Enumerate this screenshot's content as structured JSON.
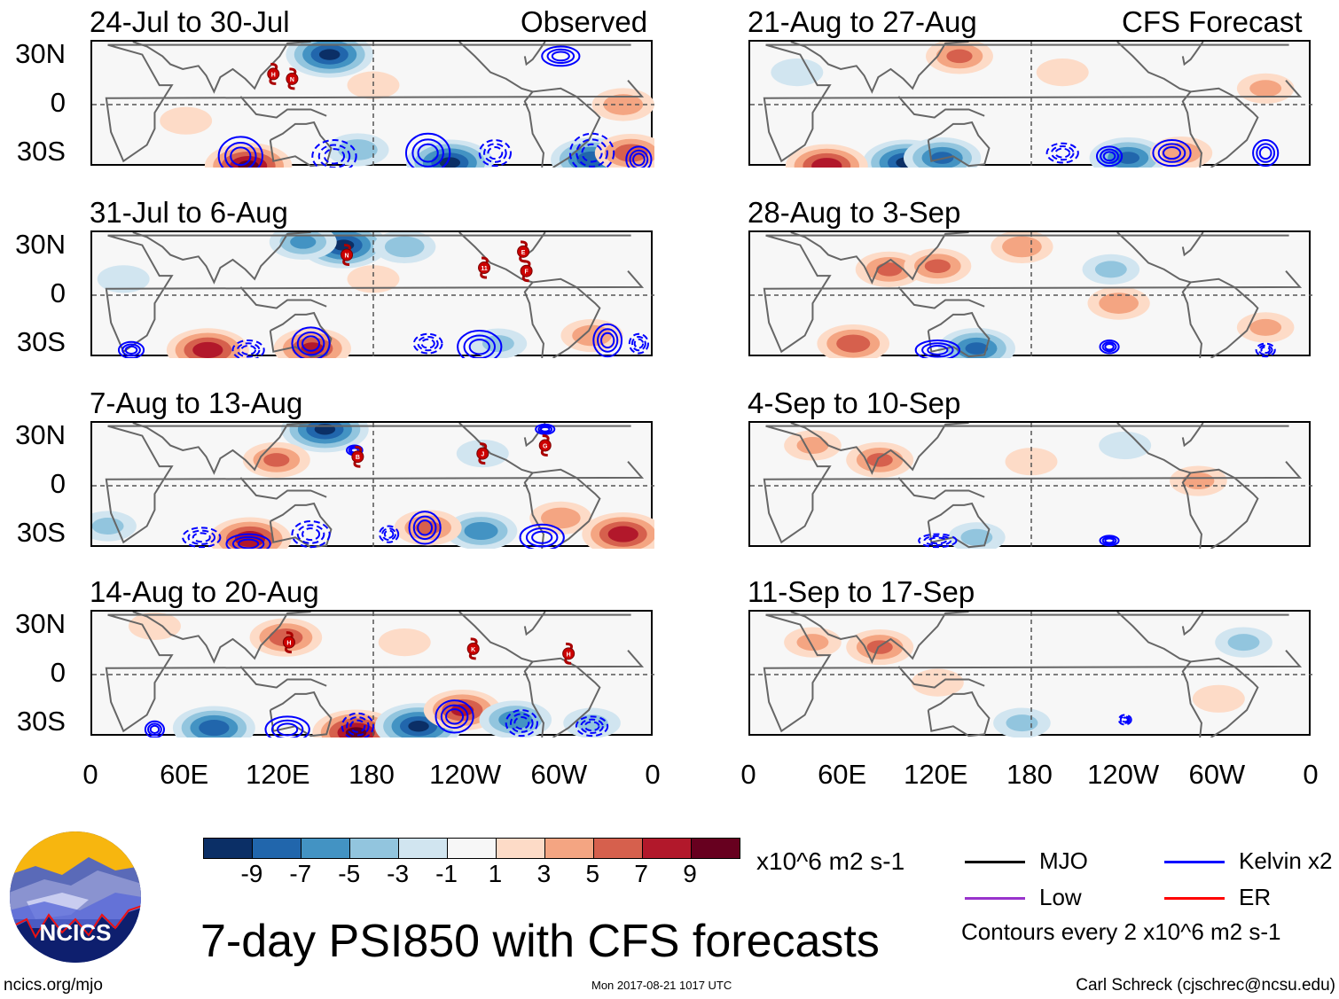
{
  "header": {
    "observed_label": "Observed",
    "forecast_label": "CFS Forecast"
  },
  "lat_labels": [
    "30N",
    "0",
    "30S"
  ],
  "lon_labels": [
    "0",
    "60E",
    "120E",
    "180",
    "120W",
    "60W",
    "0"
  ],
  "panels": [
    {
      "title": "24-Jul to 30-Jul",
      "column": "observed",
      "anomalies": [
        {
          "lon": 152,
          "lat": 31,
          "v": -9
        },
        {
          "lon": 100,
          "lat": -38,
          "v": 9
        },
        {
          "lon": 229,
          "lat": -36,
          "v": -9
        },
        {
          "lon": 320,
          "lat": -34,
          "v": -8
        },
        {
          "lon": 345,
          "lat": -30,
          "v": 6
        },
        {
          "lon": 340,
          "lat": 0,
          "v": 4
        },
        {
          "lon": 180,
          "lat": 12,
          "v": 2
        },
        {
          "lon": 60,
          "lat": -10,
          "v": 2
        },
        {
          "lon": 170,
          "lat": -28,
          "v": -4
        }
      ],
      "contours": [
        {
          "lon": 95,
          "lat": -32,
          "rx": 14,
          "ry": 12,
          "sign": 1
        },
        {
          "lon": 155,
          "lat": -32,
          "rx": 14,
          "ry": 10,
          "sign": -1
        },
        {
          "lon": 215,
          "lat": -30,
          "rx": 14,
          "ry": 12,
          "sign": 1
        },
        {
          "lon": 258,
          "lat": -30,
          "rx": 10,
          "ry": 8,
          "sign": -1
        },
        {
          "lon": 320,
          "lat": -30,
          "rx": 14,
          "ry": 12,
          "sign": -1
        },
        {
          "lon": 350,
          "lat": -34,
          "rx": 8,
          "ry": 8,
          "sign": 1
        },
        {
          "lon": 300,
          "lat": 30,
          "rx": 12,
          "ry": 6,
          "sign": 1
        }
      ],
      "storms": [
        {
          "id": "H",
          "lon": 116,
          "lat": 19
        },
        {
          "id": "N",
          "lon": 128,
          "lat": 16
        }
      ]
    },
    {
      "title": "31-Jul to 6-Aug",
      "column": "observed",
      "anomalies": [
        {
          "lon": 161,
          "lat": 31,
          "v": -9
        },
        {
          "lon": 135,
          "lat": 33,
          "v": -5
        },
        {
          "lon": 74,
          "lat": -34,
          "v": 8
        },
        {
          "lon": 141,
          "lat": -33,
          "v": 7
        },
        {
          "lon": 200,
          "lat": 30,
          "v": -4
        },
        {
          "lon": 260,
          "lat": -30,
          "v": -3
        },
        {
          "lon": 320,
          "lat": -25,
          "v": 4
        },
        {
          "lon": 20,
          "lat": 10,
          "v": -2
        },
        {
          "lon": 180,
          "lat": 10,
          "v": 2
        }
      ],
      "contours": [
        {
          "lon": 25,
          "lat": -34,
          "rx": 8,
          "ry": 5,
          "sign": 1
        },
        {
          "lon": 100,
          "lat": -34,
          "rx": 10,
          "ry": 6,
          "sign": -1
        },
        {
          "lon": 140,
          "lat": -30,
          "rx": 12,
          "ry": 10,
          "sign": 1
        },
        {
          "lon": 215,
          "lat": -30,
          "rx": 9,
          "ry": 6,
          "sign": -1
        },
        {
          "lon": 248,
          "lat": -32,
          "rx": 14,
          "ry": 10,
          "sign": 1
        },
        {
          "lon": 330,
          "lat": -28,
          "rx": 9,
          "ry": 10,
          "sign": 1
        },
        {
          "lon": 350,
          "lat": -30,
          "rx": 6,
          "ry": 6,
          "sign": -1
        }
      ],
      "storms": [
        {
          "id": "N",
          "lon": 163,
          "lat": 25
        },
        {
          "id": "11",
          "lon": 251,
          "lat": 17
        },
        {
          "id": "E",
          "lon": 276,
          "lat": 27
        },
        {
          "id": "F",
          "lon": 278,
          "lat": 15
        }
      ]
    },
    {
      "title": "7-Aug to 13-Aug",
      "column": "observed",
      "anomalies": [
        {
          "lon": 149,
          "lat": 35,
          "v": -9
        },
        {
          "lon": 118,
          "lat": 16,
          "v": 5
        },
        {
          "lon": 101,
          "lat": -33,
          "v": 8
        },
        {
          "lon": 340,
          "lat": -30,
          "v": 8
        },
        {
          "lon": 249,
          "lat": -28,
          "v": -6
        },
        {
          "lon": 215,
          "lat": -26,
          "v": 5
        },
        {
          "lon": 10,
          "lat": -25,
          "v": -3
        },
        {
          "lon": 300,
          "lat": -20,
          "v": 4
        },
        {
          "lon": 250,
          "lat": 20,
          "v": -2
        }
      ],
      "contours": [
        {
          "lon": 70,
          "lat": -32,
          "rx": 12,
          "ry": 6,
          "sign": -1
        },
        {
          "lon": 100,
          "lat": -36,
          "rx": 14,
          "ry": 6,
          "sign": 1
        },
        {
          "lon": 140,
          "lat": -30,
          "rx": 12,
          "ry": 8,
          "sign": -1
        },
        {
          "lon": 190,
          "lat": -30,
          "rx": 6,
          "ry": 5,
          "sign": -1
        },
        {
          "lon": 213,
          "lat": -26,
          "rx": 10,
          "ry": 10,
          "sign": 1
        },
        {
          "lon": 288,
          "lat": -32,
          "rx": 14,
          "ry": 8,
          "sign": 1
        },
        {
          "lon": 168,
          "lat": 22,
          "rx": 5,
          "ry": 3,
          "sign": 1
        },
        {
          "lon": 290,
          "lat": 35,
          "rx": 6,
          "ry": 3,
          "sign": 1
        }
      ],
      "storms": [
        {
          "id": "B",
          "lon": 170,
          "lat": 18
        },
        {
          "id": "J",
          "lon": 250,
          "lat": 20
        },
        {
          "id": "G",
          "lon": 290,
          "lat": 25
        }
      ]
    },
    {
      "title": "14-Aug to 20-Aug",
      "column": "observed",
      "anomalies": [
        {
          "lon": 124,
          "lat": 23,
          "v": 6
        },
        {
          "lon": 78,
          "lat": -33,
          "v": -8
        },
        {
          "lon": 169,
          "lat": -36,
          "v": 9
        },
        {
          "lon": 209,
          "lat": -32,
          "v": -9
        },
        {
          "lon": 237,
          "lat": -22,
          "v": 7
        },
        {
          "lon": 271,
          "lat": -28,
          "v": -6
        },
        {
          "lon": 320,
          "lat": -30,
          "v": -3
        },
        {
          "lon": 40,
          "lat": 30,
          "v": 2
        },
        {
          "lon": 200,
          "lat": 20,
          "v": 2
        }
      ],
      "contours": [
        {
          "lon": 40,
          "lat": -34,
          "rx": 6,
          "ry": 5,
          "sign": 1
        },
        {
          "lon": 125,
          "lat": -34,
          "rx": 14,
          "ry": 8,
          "sign": 1
        },
        {
          "lon": 170,
          "lat": -32,
          "rx": 10,
          "ry": 8,
          "sign": -1
        },
        {
          "lon": 232,
          "lat": -26,
          "rx": 12,
          "ry": 10,
          "sign": 1
        },
        {
          "lon": 275,
          "lat": -30,
          "rx": 10,
          "ry": 8,
          "sign": -1
        },
        {
          "lon": 320,
          "lat": -32,
          "rx": 10,
          "ry": 6,
          "sign": -1
        }
      ],
      "storms": [
        {
          "id": "H",
          "lon": 126,
          "lat": 20
        },
        {
          "id": "K",
          "lon": 244,
          "lat": 16
        },
        {
          "id": "H",
          "lon": 305,
          "lat": 13
        }
      ]
    },
    {
      "title": "21-Aug to 27-Aug",
      "column": "forecast",
      "anomalies": [
        {
          "lon": 134,
          "lat": 30,
          "v": 5
        },
        {
          "lon": 100,
          "lat": -36,
          "v": -9
        },
        {
          "lon": 123,
          "lat": -33,
          "v": -7
        },
        {
          "lon": 49,
          "lat": -38,
          "v": 8
        },
        {
          "lon": 242,
          "lat": -33,
          "v": -7
        },
        {
          "lon": 276,
          "lat": -30,
          "v": 4
        },
        {
          "lon": 330,
          "lat": 10,
          "v": 3
        },
        {
          "lon": 200,
          "lat": 20,
          "v": 2
        },
        {
          "lon": 30,
          "lat": 20,
          "v": -2
        }
      ],
      "contours": [
        {
          "lon": 200,
          "lat": -30,
          "rx": 10,
          "ry": 6,
          "sign": -1
        },
        {
          "lon": 230,
          "lat": -32,
          "rx": 8,
          "ry": 6,
          "sign": 1
        },
        {
          "lon": 270,
          "lat": -30,
          "rx": 12,
          "ry": 8,
          "sign": 1
        },
        {
          "lon": 330,
          "lat": -30,
          "rx": 8,
          "ry": 8,
          "sign": 1
        }
      ],
      "storms": []
    },
    {
      "title": "28-Aug to 3-Sep",
      "column": "forecast",
      "anomalies": [
        {
          "lon": 89,
          "lat": 16,
          "v": 5
        },
        {
          "lon": 174,
          "lat": 30,
          "v": 4
        },
        {
          "lon": 66,
          "lat": -30,
          "v": 6
        },
        {
          "lon": 145,
          "lat": -33,
          "v": -7
        },
        {
          "lon": 231,
          "lat": 16,
          "v": -3
        },
        {
          "lon": 236,
          "lat": -5,
          "v": 4
        },
        {
          "lon": 120,
          "lat": 18,
          "v": 5
        },
        {
          "lon": 330,
          "lat": -20,
          "v": 3
        }
      ],
      "contours": [
        {
          "lon": 120,
          "lat": -34,
          "rx": 14,
          "ry": 6,
          "sign": 1
        },
        {
          "lon": 230,
          "lat": -32,
          "rx": 6,
          "ry": 4,
          "sign": 1
        },
        {
          "lon": 330,
          "lat": -34,
          "rx": 6,
          "ry": 4,
          "sign": -1
        }
      ],
      "storms": []
    },
    {
      "title": "4-Sep to 10-Sep",
      "column": "forecast",
      "anomalies": [
        {
          "lon": 83,
          "lat": 16,
          "v": 5
        },
        {
          "lon": 145,
          "lat": -32,
          "v": -3
        },
        {
          "lon": 287,
          "lat": 3,
          "v": 3
        },
        {
          "lon": 180,
          "lat": 15,
          "v": 2
        },
        {
          "lon": 40,
          "lat": 25,
          "v": 3
        },
        {
          "lon": 240,
          "lat": 25,
          "v": -2
        }
      ],
      "contours": [
        {
          "lon": 120,
          "lat": -34,
          "rx": 12,
          "ry": 4,
          "sign": -1
        },
        {
          "lon": 230,
          "lat": -34,
          "rx": 6,
          "ry": 3,
          "sign": 1
        }
      ],
      "storms": []
    },
    {
      "title": "11-Sep to 17-Sep",
      "column": "forecast",
      "anomalies": [
        {
          "lon": 83,
          "lat": 17,
          "v": 5
        },
        {
          "lon": 174,
          "lat": -30,
          "v": -3
        },
        {
          "lon": 316,
          "lat": 20,
          "v": -3
        },
        {
          "lon": 120,
          "lat": -5,
          "v": 2
        },
        {
          "lon": 40,
          "lat": 20,
          "v": 3
        },
        {
          "lon": 300,
          "lat": -15,
          "v": 2
        }
      ],
      "contours": [
        {
          "lon": 240,
          "lat": -28,
          "rx": 4,
          "ry": 3,
          "sign": -1
        }
      ],
      "storms": []
    }
  ],
  "colorbar": {
    "ticks": [
      "-9",
      "-7",
      "-5",
      "-3",
      "-1",
      "1",
      "3",
      "5",
      "7",
      "9"
    ],
    "colors": [
      "#0b2f66",
      "#2166ac",
      "#4393c3",
      "#92c5de",
      "#d1e5f0",
      "#f7f7f7",
      "#fddbc7",
      "#f4a582",
      "#d6604d",
      "#b2182b",
      "#67001f"
    ],
    "units": "x10^6 m2 s-1"
  },
  "legend": {
    "items": [
      {
        "label": "MJO",
        "color": "#000000"
      },
      {
        "label": "Kelvin x2",
        "color": "#0000ff"
      },
      {
        "label": "Low",
        "color": "#9933cc"
      },
      {
        "label": "ER",
        "color": "#ff0000"
      }
    ],
    "contours_note": "Contours every 2 x10^6 m2 s-1"
  },
  "main_title": "7-day PSI850 with CFS forecasts",
  "logo_text": "NCICS",
  "footer": {
    "url": "ncics.org/mjo",
    "timestamp": "Mon 2017-08-21 1017 UTC",
    "author": "Carl Schreck (cjschrec@ncsu.edu)"
  }
}
